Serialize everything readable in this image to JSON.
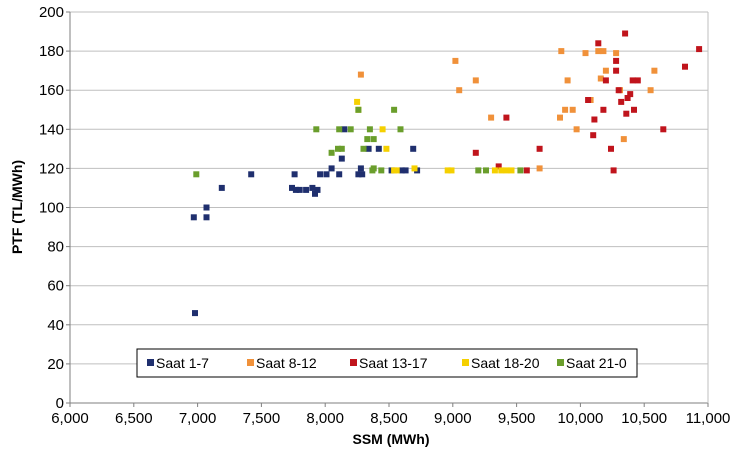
{
  "chart_data": {
    "type": "scatter",
    "xlabel": "SSM (MWh)",
    "ylabel": "PTF (TL/MWh)",
    "xlim": [
      6000,
      11000
    ],
    "ylim": [
      0,
      200
    ],
    "x_ticks": [
      "6,000",
      "6,500",
      "7,000",
      "7,500",
      "8,000",
      "8,500",
      "9,000",
      "9,500",
      "10,000",
      "10,500",
      "11,000"
    ],
    "y_ticks": [
      "0",
      "20",
      "40",
      "60",
      "80",
      "100",
      "120",
      "140",
      "160",
      "180",
      "200"
    ],
    "grid": "horizontal",
    "legend_position": "bottom-center",
    "series": [
      {
        "name": "Saat 1-7",
        "color": "#1f2f6e",
        "points": [
          [
            6970,
            95
          ],
          [
            6980,
            46
          ],
          [
            7070,
            100
          ],
          [
            7070,
            95
          ],
          [
            7190,
            110
          ],
          [
            7420,
            117
          ],
          [
            7740,
            110
          ],
          [
            7760,
            117
          ],
          [
            7770,
            109
          ],
          [
            7800,
            109
          ],
          [
            7850,
            109
          ],
          [
            7900,
            110
          ],
          [
            7920,
            107
          ],
          [
            7940,
            109
          ],
          [
            7960,
            117
          ],
          [
            8010,
            117
          ],
          [
            8050,
            120
          ],
          [
            8110,
            117
          ],
          [
            8130,
            125
          ],
          [
            8150,
            140
          ],
          [
            8260,
            117
          ],
          [
            8280,
            120
          ],
          [
            8290,
            117
          ],
          [
            8340,
            130
          ],
          [
            8420,
            130
          ],
          [
            8520,
            119
          ],
          [
            8600,
            119
          ],
          [
            8630,
            119
          ],
          [
            8690,
            130
          ],
          [
            8720,
            119
          ]
        ]
      },
      {
        "name": "Saat 8-12",
        "color": "#f0913a",
        "points": [
          [
            8280,
            168
          ],
          [
            9020,
            175
          ],
          [
            9050,
            160
          ],
          [
            9180,
            165
          ],
          [
            9300,
            146
          ],
          [
            9680,
            120
          ],
          [
            9840,
            146
          ],
          [
            9850,
            180
          ],
          [
            9880,
            150
          ],
          [
            9900,
            165
          ],
          [
            9940,
            150
          ],
          [
            9970,
            140
          ],
          [
            10040,
            179
          ],
          [
            10080,
            155
          ],
          [
            10140,
            180
          ],
          [
            10160,
            166
          ],
          [
            10180,
            180
          ],
          [
            10200,
            170
          ],
          [
            10280,
            179
          ],
          [
            10310,
            160
          ],
          [
            10340,
            135
          ],
          [
            10550,
            160
          ],
          [
            10580,
            170
          ]
        ]
      },
      {
        "name": "Saat 13-17",
        "color": "#c0141c",
        "points": [
          [
            9180,
            128
          ],
          [
            9360,
            121
          ],
          [
            9420,
            146
          ],
          [
            9580,
            119
          ],
          [
            9680,
            130
          ],
          [
            10060,
            155
          ],
          [
            10100,
            137
          ],
          [
            10110,
            145
          ],
          [
            10140,
            184
          ],
          [
            10180,
            150
          ],
          [
            10200,
            165
          ],
          [
            10240,
            130
          ],
          [
            10260,
            119
          ],
          [
            10280,
            170
          ],
          [
            10280,
            175
          ],
          [
            10300,
            160
          ],
          [
            10320,
            154
          ],
          [
            10350,
            189
          ],
          [
            10360,
            148
          ],
          [
            10370,
            156
          ],
          [
            10390,
            158
          ],
          [
            10410,
            165
          ],
          [
            10420,
            150
          ],
          [
            10450,
            165
          ],
          [
            10650,
            140
          ],
          [
            10820,
            172
          ],
          [
            10930,
            181
          ]
        ]
      },
      {
        "name": "Saat 18-20",
        "color": "#f5d000",
        "points": [
          [
            8250,
            154
          ],
          [
            8260,
            150
          ],
          [
            8450,
            140
          ],
          [
            8480,
            130
          ],
          [
            8540,
            119
          ],
          [
            8560,
            119
          ],
          [
            8700,
            120
          ],
          [
            8960,
            119
          ],
          [
            8990,
            119
          ],
          [
            9330,
            119
          ],
          [
            9380,
            119
          ],
          [
            9420,
            119
          ],
          [
            9460,
            119
          ]
        ]
      },
      {
        "name": "Saat 21-0",
        "color": "#6a9e2c",
        "points": [
          [
            6990,
            117
          ],
          [
            7930,
            140
          ],
          [
            8050,
            128
          ],
          [
            8100,
            130
          ],
          [
            8110,
            140
          ],
          [
            8130,
            130
          ],
          [
            8200,
            140
          ],
          [
            8260,
            150
          ],
          [
            8300,
            130
          ],
          [
            8330,
            135
          ],
          [
            8350,
            140
          ],
          [
            8370,
            119
          ],
          [
            8380,
            135
          ],
          [
            8380,
            120
          ],
          [
            8440,
            119
          ],
          [
            8540,
            150
          ],
          [
            8590,
            140
          ],
          [
            9200,
            119
          ],
          [
            9260,
            119
          ],
          [
            9530,
            119
          ]
        ]
      }
    ]
  }
}
